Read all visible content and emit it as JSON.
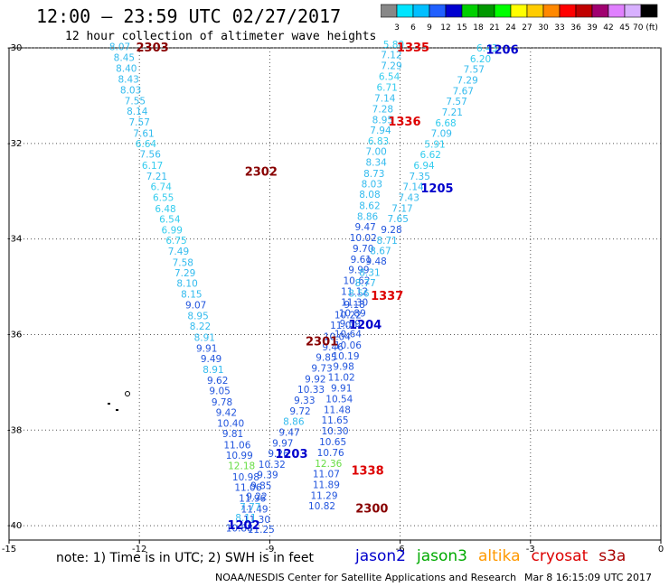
{
  "header": {
    "title": "12:00 – 23:59 UTC 02/27/2017",
    "subtitle": "12 hour collection of altimeter wave heights"
  },
  "colorbar": {
    "ticks": [
      "3",
      "6",
      "9",
      "12",
      "15",
      "18",
      "21",
      "24",
      "27",
      "30",
      "33",
      "36",
      "39",
      "42",
      "45",
      "70 (ft)"
    ],
    "colors": [
      "#888888",
      "#00e5ff",
      "#00bfff",
      "#2060ff",
      "#0000d0",
      "#00d000",
      "#009800",
      "#00ff00",
      "#ffff00",
      "#ffcc00",
      "#ff8800",
      "#ff0000",
      "#c00000",
      "#a00070",
      "#e080ff",
      "#d8b0ff",
      "#000000"
    ]
  },
  "axes": {
    "x_ticks": [
      "-15",
      "-12",
      "-9",
      "-6",
      "-3",
      "0"
    ],
    "y_ticks": [
      "-30",
      "-32",
      "-34",
      "-36",
      "-38",
      "-40"
    ]
  },
  "legend": {
    "note": "note: 1) Time is in UTC; 2) SWH is in feet",
    "satellites": [
      {
        "name": "jason2",
        "color": "#0000cc"
      },
      {
        "name": "jason3",
        "color": "#00aa00"
      },
      {
        "name": "altika",
        "color": "#ff9900"
      },
      {
        "name": "cryosat",
        "color": "#dd0000"
      },
      {
        "name": "s3a",
        "color": "#aa0000"
      }
    ]
  },
  "footer": {
    "credit": "NOAA/NESDIS Center for Satellite Applications and Research",
    "generated": "Mar  8 16:15:09 UTC 2017"
  },
  "track_labels": [
    {
      "text": "2303",
      "lon": -11.7,
      "lat": -30.0,
      "color": "#880000"
    },
    {
      "text": "2302",
      "lon": -9.2,
      "lat": -32.6,
      "color": "#880000"
    },
    {
      "text": "2301",
      "lon": -7.8,
      "lat": -36.15,
      "color": "#880000"
    },
    {
      "text": "2300",
      "lon": -6.65,
      "lat": -39.65,
      "color": "#880000"
    },
    {
      "text": "1335",
      "lon": -5.7,
      "lat": -30.0,
      "color": "#dd0000"
    },
    {
      "text": "1336",
      "lon": -5.9,
      "lat": -31.55,
      "color": "#dd0000"
    },
    {
      "text": "1337",
      "lon": -6.3,
      "lat": -35.2,
      "color": "#dd0000"
    },
    {
      "text": "1338",
      "lon": -6.75,
      "lat": -38.85,
      "color": "#dd0000"
    },
    {
      "text": "1206",
      "lon": -3.65,
      "lat": -30.05,
      "color": "#0000cc"
    },
    {
      "text": "1205",
      "lon": -5.15,
      "lat": -32.95,
      "color": "#0000cc"
    },
    {
      "text": "1204",
      "lon": -6.8,
      "lat": -35.8,
      "color": "#0000cc"
    },
    {
      "text": "1203",
      "lon": -8.5,
      "lat": -38.5,
      "color": "#0000cc"
    },
    {
      "text": "1202",
      "lon": -9.6,
      "lat": -40.0,
      "color": "#0000cc"
    }
  ],
  "tracks": [
    {
      "name": "track-2303-2302-descending",
      "points": [
        {
          "v": "8.07",
          "lon": -12.45,
          "lat": -30.05,
          "c": "#33bbee"
        },
        {
          "v": "8.45",
          "lon": -12.35,
          "lat": -30.27,
          "c": "#33bbee"
        },
        {
          "v": "8.40",
          "lon": -12.3,
          "lat": -30.5,
          "c": "#33bbee"
        },
        {
          "v": "8.43",
          "lon": -12.25,
          "lat": -30.73,
          "c": "#33bbee"
        },
        {
          "v": "8.03",
          "lon": -12.2,
          "lat": -30.95,
          "c": "#33bbee"
        },
        {
          "v": "7.55",
          "lon": -12.1,
          "lat": -31.18,
          "c": "#33bbee"
        },
        {
          "v": "8.14",
          "lon": -12.05,
          "lat": -31.4,
          "c": "#33bbee"
        },
        {
          "v": "7.57",
          "lon": -12.0,
          "lat": -31.63,
          "c": "#33bbee"
        },
        {
          "v": "7.61",
          "lon": -11.9,
          "lat": -31.86,
          "c": "#33bbee"
        },
        {
          "v": "6.64",
          "lon": -11.85,
          "lat": -32.08,
          "c": "#33ccee"
        },
        {
          "v": "7.56",
          "lon": -11.75,
          "lat": -32.3,
          "c": "#33bbee"
        },
        {
          "v": "6.17",
          "lon": -11.7,
          "lat": -32.53,
          "c": "#33ccee"
        },
        {
          "v": "7.21",
          "lon": -11.6,
          "lat": -32.76,
          "c": "#33bbee"
        },
        {
          "v": "6.74",
          "lon": -11.5,
          "lat": -32.98,
          "c": "#33ccee"
        },
        {
          "v": "6.55",
          "lon": -11.45,
          "lat": -33.2,
          "c": "#33ccee"
        },
        {
          "v": "6.48",
          "lon": -11.4,
          "lat": -33.44,
          "c": "#33ccee"
        },
        {
          "v": "6.54",
          "lon": -11.3,
          "lat": -33.66,
          "c": "#33ccee"
        },
        {
          "v": "6.99",
          "lon": -11.25,
          "lat": -33.88,
          "c": "#33ccee"
        },
        {
          "v": "6.75",
          "lon": -11.15,
          "lat": -34.1,
          "c": "#33ccee"
        },
        {
          "v": "7.49",
          "lon": -11.1,
          "lat": -34.33,
          "c": "#33bbee"
        },
        {
          "v": "7.58",
          "lon": -11.0,
          "lat": -34.56,
          "c": "#33bbee"
        },
        {
          "v": "7.29",
          "lon": -10.95,
          "lat": -34.78,
          "c": "#33bbee"
        },
        {
          "v": "8.10",
          "lon": -10.9,
          "lat": -35.0,
          "c": "#33bbee"
        },
        {
          "v": "8.15",
          "lon": -10.8,
          "lat": -35.23,
          "c": "#33bbee"
        },
        {
          "v": "9.07",
          "lon": -10.7,
          "lat": -35.45,
          "c": "#2255dd"
        },
        {
          "v": "8.95",
          "lon": -10.65,
          "lat": -35.68,
          "c": "#33bbee"
        },
        {
          "v": "8.22",
          "lon": -10.6,
          "lat": -35.9,
          "c": "#33bbee"
        },
        {
          "v": "8.91",
          "lon": -10.5,
          "lat": -36.13,
          "c": "#33bbee"
        },
        {
          "v": "9.91",
          "lon": -10.45,
          "lat": -36.36,
          "c": "#2255dd"
        },
        {
          "v": "9.49",
          "lon": -10.35,
          "lat": -36.58,
          "c": "#2255dd"
        },
        {
          "v": "8.91",
          "lon": -10.3,
          "lat": -36.8,
          "c": "#33bbee"
        },
        {
          "v": "9.62",
          "lon": -10.2,
          "lat": -37.03,
          "c": "#2255dd"
        },
        {
          "v": "9.05",
          "lon": -10.15,
          "lat": -37.25,
          "c": "#2255dd"
        },
        {
          "v": "9.78",
          "lon": -10.1,
          "lat": -37.48,
          "c": "#2255dd"
        },
        {
          "v": "9.42",
          "lon": -10.0,
          "lat": -37.7,
          "c": "#2255dd"
        },
        {
          "v": "10.40",
          "lon": -9.9,
          "lat": -37.93,
          "c": "#2255dd"
        },
        {
          "v": "9.81",
          "lon": -9.85,
          "lat": -38.15,
          "c": "#2255dd"
        },
        {
          "v": "11.06",
          "lon": -9.75,
          "lat": -38.38,
          "c": "#2255dd"
        },
        {
          "v": "10.99",
          "lon": -9.7,
          "lat": -38.6,
          "c": "#2255dd"
        },
        {
          "v": "12.18",
          "lon": -9.65,
          "lat": -38.82,
          "c": "#66dd44"
        },
        {
          "v": "10.98",
          "lon": -9.55,
          "lat": -39.05,
          "c": "#2255dd"
        },
        {
          "v": "11.06",
          "lon": -9.5,
          "lat": -39.27,
          "c": "#2255dd"
        },
        {
          "v": "11.96",
          "lon": -9.4,
          "lat": -39.5,
          "c": "#2255dd"
        },
        {
          "v": "11.49",
          "lon": -9.35,
          "lat": -39.72,
          "c": "#2255dd"
        },
        {
          "v": "11.30",
          "lon": -9.3,
          "lat": -39.94,
          "c": "#2255dd"
        },
        {
          "v": "11.25",
          "lon": -9.2,
          "lat": -40.15,
          "c": "#2255dd"
        }
      ]
    },
    {
      "name": "track-1335-1338-descending",
      "points": [
        {
          "v": "5.80",
          "lon": -6.15,
          "lat": -30.0,
          "c": "#33ccee"
        },
        {
          "v": "7.12",
          "lon": -6.2,
          "lat": -30.22,
          "c": "#33bbee"
        },
        {
          "v": "7.29",
          "lon": -6.2,
          "lat": -30.44,
          "c": "#33bbee"
        },
        {
          "v": "6.54",
          "lon": -6.25,
          "lat": -30.67,
          "c": "#33ccee"
        },
        {
          "v": "6.71",
          "lon": -6.3,
          "lat": -30.9,
          "c": "#33ccee"
        },
        {
          "v": "7.14",
          "lon": -6.35,
          "lat": -31.12,
          "c": "#33bbee"
        },
        {
          "v": "7.28",
          "lon": -6.4,
          "lat": -31.35,
          "c": "#33bbee"
        },
        {
          "v": "8.95",
          "lon": -6.4,
          "lat": -31.58,
          "c": "#33bbee"
        },
        {
          "v": "7.94",
          "lon": -6.45,
          "lat": -31.8,
          "c": "#33bbee"
        },
        {
          "v": "6.83",
          "lon": -6.5,
          "lat": -32.02,
          "c": "#33ccee"
        },
        {
          "v": "7.00",
          "lon": -6.55,
          "lat": -32.24,
          "c": "#33bbee"
        },
        {
          "v": "8.34",
          "lon": -6.55,
          "lat": -32.47,
          "c": "#33bbee"
        },
        {
          "v": "8.73",
          "lon": -6.6,
          "lat": -32.7,
          "c": "#33bbee"
        },
        {
          "v": "8.03",
          "lon": -6.65,
          "lat": -32.92,
          "c": "#33bbee"
        },
        {
          "v": "8.08",
          "lon": -6.7,
          "lat": -33.14,
          "c": "#33bbee"
        },
        {
          "v": "8.62",
          "lon": -6.7,
          "lat": -33.37,
          "c": "#33bbee"
        },
        {
          "v": "8.86",
          "lon": -6.75,
          "lat": -33.6,
          "c": "#33bbee"
        },
        {
          "v": "9.47",
          "lon": -6.8,
          "lat": -33.82,
          "c": "#2255dd"
        },
        {
          "v": "10.02",
          "lon": -6.85,
          "lat": -34.04,
          "c": "#2255dd"
        },
        {
          "v": "9.70",
          "lon": -6.85,
          "lat": -34.27,
          "c": "#2255dd"
        },
        {
          "v": "9.61",
          "lon": -6.9,
          "lat": -34.5,
          "c": "#2255dd"
        },
        {
          "v": "9.99",
          "lon": -6.95,
          "lat": -34.72,
          "c": "#2255dd"
        },
        {
          "v": "10.62",
          "lon": -7.0,
          "lat": -34.94,
          "c": "#2255dd"
        },
        {
          "v": "11.12",
          "lon": -7.05,
          "lat": -35.17,
          "c": "#2255dd"
        },
        {
          "v": "11.30",
          "lon": -7.05,
          "lat": -35.4,
          "c": "#2255dd"
        },
        {
          "v": "10.89",
          "lon": -7.1,
          "lat": -35.62,
          "c": "#2255dd"
        },
        {
          "v": "9.59",
          "lon": -7.15,
          "lat": -35.84,
          "c": "#2255dd"
        },
        {
          "v": "10.64",
          "lon": -7.2,
          "lat": -36.06,
          "c": "#2255dd"
        },
        {
          "v": "10.06",
          "lon": -7.2,
          "lat": -36.29,
          "c": "#2255dd"
        },
        {
          "v": "10.19",
          "lon": -7.25,
          "lat": -36.52,
          "c": "#2255dd"
        },
        {
          "v": "9.98",
          "lon": -7.3,
          "lat": -36.74,
          "c": "#2255dd"
        },
        {
          "v": "11.02",
          "lon": -7.35,
          "lat": -36.96,
          "c": "#2255dd"
        },
        {
          "v": "9.91",
          "lon": -7.35,
          "lat": -37.19,
          "c": "#2255dd"
        },
        {
          "v": "10.54",
          "lon": -7.4,
          "lat": -37.42,
          "c": "#2255dd"
        },
        {
          "v": "11.48",
          "lon": -7.45,
          "lat": -37.64,
          "c": "#2255dd"
        },
        {
          "v": "11.65",
          "lon": -7.5,
          "lat": -37.86,
          "c": "#2255dd"
        },
        {
          "v": "10.30",
          "lon": -7.5,
          "lat": -38.09,
          "c": "#2255dd"
        },
        {
          "v": "10.65",
          "lon": -7.55,
          "lat": -38.32,
          "c": "#2255dd"
        },
        {
          "v": "10.76",
          "lon": -7.6,
          "lat": -38.54,
          "c": "#2255dd"
        },
        {
          "v": "12.36",
          "lon": -7.65,
          "lat": -38.77,
          "c": "#66dd44"
        },
        {
          "v": "11.07",
          "lon": -7.7,
          "lat": -38.99,
          "c": "#2255dd"
        },
        {
          "v": "11.89",
          "lon": -7.7,
          "lat": -39.21,
          "c": "#2255dd"
        },
        {
          "v": "11.29",
          "lon": -7.75,
          "lat": -39.44,
          "c": "#2255dd"
        },
        {
          "v": "10.82",
          "lon": -7.8,
          "lat": -39.66,
          "c": "#2255dd"
        }
      ]
    },
    {
      "name": "track-1206-1202-descending",
      "points": [
        {
          "v": "6.43",
          "lon": -4.0,
          "lat": -30.08,
          "c": "#33ccee"
        },
        {
          "v": "6.20",
          "lon": -4.15,
          "lat": -30.3,
          "c": "#33ccee"
        },
        {
          "v": "7.57",
          "lon": -4.3,
          "lat": -30.52,
          "c": "#33bbee"
        },
        {
          "v": "7.29",
          "lon": -4.45,
          "lat": -30.75,
          "c": "#33bbee"
        },
        {
          "v": "7.67",
          "lon": -4.55,
          "lat": -30.97,
          "c": "#33bbee"
        },
        {
          "v": "7.57",
          "lon": -4.7,
          "lat": -31.19,
          "c": "#33bbee"
        },
        {
          "v": "7.21",
          "lon": -4.8,
          "lat": -31.42,
          "c": "#33bbee"
        },
        {
          "v": "6.68",
          "lon": -4.95,
          "lat": -31.64,
          "c": "#33ccee"
        },
        {
          "v": "7.09",
          "lon": -5.05,
          "lat": -31.86,
          "c": "#33bbee"
        },
        {
          "v": "5.91",
          "lon": -5.2,
          "lat": -32.09,
          "c": "#33ccee"
        },
        {
          "v": "6.62",
          "lon": -5.3,
          "lat": -32.31,
          "c": "#33ccee"
        },
        {
          "v": "6.94",
          "lon": -5.45,
          "lat": -32.53,
          "c": "#33ccee"
        },
        {
          "v": "7.35",
          "lon": -5.55,
          "lat": -32.76,
          "c": "#33bbee"
        },
        {
          "v": "7.14",
          "lon": -5.7,
          "lat": -32.98,
          "c": "#33bbee"
        },
        {
          "v": "7.43",
          "lon": -5.8,
          "lat": -33.2,
          "c": "#33bbee"
        },
        {
          "v": "7.17",
          "lon": -5.95,
          "lat": -33.43,
          "c": "#33bbee"
        },
        {
          "v": "7.65",
          "lon": -6.05,
          "lat": -33.65,
          "c": "#33bbee"
        },
        {
          "v": "9.28",
          "lon": -6.2,
          "lat": -33.87,
          "c": "#2255dd"
        },
        {
          "v": "8.71",
          "lon": -6.3,
          "lat": -34.1,
          "c": "#33bbee"
        },
        {
          "v": "8.67",
          "lon": -6.45,
          "lat": -34.32,
          "c": "#33bbee"
        },
        {
          "v": "9.48",
          "lon": -6.55,
          "lat": -34.54,
          "c": "#2255dd"
        },
        {
          "v": "8.31",
          "lon": -6.7,
          "lat": -34.77,
          "c": "#33bbee"
        },
        {
          "v": "8.77",
          "lon": -6.8,
          "lat": -34.99,
          "c": "#33bbee"
        },
        {
          "v": "8.56",
          "lon": -6.95,
          "lat": -35.21,
          "c": "#33bbee"
        },
        {
          "v": "9.18",
          "lon": -7.05,
          "lat": -35.44,
          "c": "#2255dd"
        },
        {
          "v": "10.22",
          "lon": -7.2,
          "lat": -35.66,
          "c": "#2255dd"
        },
        {
          "v": "11.00",
          "lon": -7.3,
          "lat": -35.88,
          "c": "#2255dd"
        },
        {
          "v": "10.04",
          "lon": -7.45,
          "lat": -36.11,
          "c": "#2255dd"
        },
        {
          "v": "9.46",
          "lon": -7.55,
          "lat": -36.33,
          "c": "#2255dd"
        },
        {
          "v": "9.85",
          "lon": -7.7,
          "lat": -36.55,
          "c": "#2255dd"
        },
        {
          "v": "9.73",
          "lon": -7.8,
          "lat": -36.78,
          "c": "#2255dd"
        },
        {
          "v": "9.92",
          "lon": -7.95,
          "lat": -37.0,
          "c": "#2255dd"
        },
        {
          "v": "10.33",
          "lon": -8.05,
          "lat": -37.22,
          "c": "#2255dd"
        },
        {
          "v": "9.33",
          "lon": -8.2,
          "lat": -37.45,
          "c": "#2255dd"
        },
        {
          "v": "9.72",
          "lon": -8.3,
          "lat": -37.67,
          "c": "#2255dd"
        },
        {
          "v": "8.86",
          "lon": -8.45,
          "lat": -37.89,
          "c": "#33bbee"
        },
        {
          "v": "9.47",
          "lon": -8.55,
          "lat": -38.12,
          "c": "#2255dd"
        },
        {
          "v": "9.97",
          "lon": -8.7,
          "lat": -38.34,
          "c": "#2255dd"
        },
        {
          "v": "9.26",
          "lon": -8.8,
          "lat": -38.56,
          "c": "#2255dd"
        },
        {
          "v": "10.32",
          "lon": -8.95,
          "lat": -38.79,
          "c": "#2255dd"
        },
        {
          "v": "9.39",
          "lon": -9.05,
          "lat": -39.01,
          "c": "#2255dd"
        },
        {
          "v": "9.85",
          "lon": -9.2,
          "lat": -39.23,
          "c": "#2255dd"
        },
        {
          "v": "9.22",
          "lon": -9.3,
          "lat": -39.46,
          "c": "#2255dd"
        },
        {
          "v": "7.77",
          "lon": -9.45,
          "lat": -39.68,
          "c": "#33bbee"
        },
        {
          "v": "8.11",
          "lon": -9.55,
          "lat": -39.9,
          "c": "#33bbee"
        },
        {
          "v": "10.88",
          "lon": -9.7,
          "lat": -40.12,
          "c": "#2255dd"
        }
      ]
    }
  ]
}
